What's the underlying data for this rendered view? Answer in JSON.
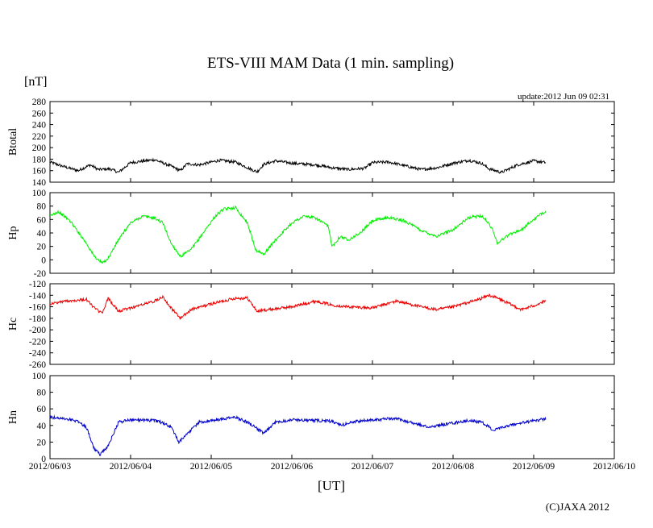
{
  "chart_data": {
    "type": "line",
    "title": "ETS-VIII MAM Data (1 min. sampling)",
    "unit_label": "[nT]",
    "update_text": "update:2012 Jun 09 02:31",
    "xlabel": "[UT]",
    "copyright": "(C)JAXA 2012",
    "x_ticks": [
      "2012/06/03",
      "2012/06/04",
      "2012/06/05",
      "2012/06/06",
      "2012/06/07",
      "2012/06/08",
      "2012/06/09",
      "2012/06/10"
    ],
    "x_range_days": [
      0,
      7
    ],
    "panels": [
      {
        "name": "Btotal",
        "color": "#000000",
        "ylim": [
          140,
          280
        ],
        "yticks": [
          "280",
          "260",
          "240",
          "220",
          "200",
          "180",
          "160",
          "140"
        ],
        "x_days": [
          0,
          0.15,
          0.35,
          0.5,
          0.6,
          0.75,
          0.85,
          1.0,
          1.3,
          1.5,
          1.62,
          1.7,
          1.85,
          2.1,
          2.3,
          2.5,
          2.57,
          2.65,
          2.8,
          3.0,
          3.3,
          3.5,
          3.7,
          3.9,
          4.0,
          4.2,
          4.45,
          4.6,
          4.8,
          5.0,
          5.2,
          5.35,
          5.45,
          5.6,
          5.8,
          6.0,
          6.15
        ],
        "values": [
          175,
          168,
          160,
          170,
          162,
          163,
          157,
          174,
          179,
          168,
          160,
          172,
          170,
          178,
          175,
          162,
          158,
          171,
          177,
          173,
          170,
          165,
          162,
          164,
          174,
          175,
          167,
          162,
          165,
          173,
          178,
          173,
          163,
          157,
          170,
          177,
          174
        ]
      },
      {
        "name": "Hp",
        "color": "#00ee00",
        "ylim": [
          -20,
          100
        ],
        "yticks": [
          "100",
          "80",
          "60",
          "40",
          "20",
          "0",
          "-20"
        ],
        "x_days": [
          0,
          0.1,
          0.25,
          0.45,
          0.55,
          0.65,
          0.72,
          0.85,
          1.0,
          1.15,
          1.3,
          1.4,
          1.5,
          1.62,
          1.75,
          1.9,
          2.05,
          2.15,
          2.3,
          2.45,
          2.55,
          2.65,
          2.8,
          3.0,
          3.15,
          3.3,
          3.45,
          3.5,
          3.6,
          3.7,
          3.85,
          4.0,
          4.2,
          4.4,
          4.6,
          4.8,
          5.0,
          5.2,
          5.35,
          5.4,
          5.48,
          5.55,
          5.7,
          5.85,
          6.0,
          6.15
        ],
        "values": [
          65,
          72,
          58,
          25,
          5,
          -5,
          2,
          30,
          55,
          65,
          62,
          55,
          25,
          5,
          15,
          40,
          65,
          75,
          78,
          55,
          15,
          8,
          30,
          55,
          65,
          62,
          50,
          20,
          35,
          30,
          40,
          58,
          63,
          58,
          44,
          35,
          45,
          63,
          66,
          60,
          48,
          25,
          38,
          45,
          60,
          73
        ]
      },
      {
        "name": "Hc",
        "color": "#ee0000",
        "ylim": [
          -260,
          -120
        ],
        "yticks": [
          "-120",
          "-140",
          "-160",
          "-180",
          "-200",
          "-220",
          "-240",
          "-260"
        ],
        "x_days": [
          0,
          0.2,
          0.45,
          0.55,
          0.65,
          0.72,
          0.85,
          1.0,
          1.3,
          1.4,
          1.5,
          1.62,
          1.75,
          2.0,
          2.3,
          2.45,
          2.57,
          2.7,
          3.0,
          3.3,
          3.5,
          3.7,
          4.0,
          4.3,
          4.6,
          4.8,
          5.0,
          5.3,
          5.45,
          5.55,
          5.7,
          5.85,
          6.0,
          6.15
        ],
        "values": [
          -155,
          -150,
          -147,
          -162,
          -172,
          -145,
          -168,
          -162,
          -150,
          -142,
          -162,
          -180,
          -165,
          -155,
          -145,
          -145,
          -168,
          -165,
          -160,
          -150,
          -157,
          -160,
          -162,
          -150,
          -160,
          -165,
          -160,
          -148,
          -140,
          -145,
          -155,
          -165,
          -158,
          -150
        ]
      },
      {
        "name": "Hn",
        "color": "#0000cc",
        "ylim": [
          0,
          100
        ],
        "yticks": [
          "100",
          "80",
          "60",
          "40",
          "20",
          "0"
        ],
        "x_days": [
          0,
          0.2,
          0.35,
          0.45,
          0.55,
          0.62,
          0.72,
          0.85,
          1.0,
          1.3,
          1.4,
          1.5,
          1.6,
          1.7,
          1.85,
          2.1,
          2.3,
          2.45,
          2.55,
          2.65,
          2.8,
          3.0,
          3.3,
          3.5,
          3.6,
          3.75,
          4.0,
          4.3,
          4.5,
          4.7,
          5.0,
          5.2,
          5.35,
          5.45,
          5.5,
          5.7,
          5.9,
          6.15
        ],
        "values": [
          50,
          48,
          45,
          38,
          12,
          5,
          15,
          44,
          47,
          46,
          43,
          38,
          20,
          30,
          44,
          47,
          50,
          44,
          38,
          30,
          44,
          47,
          46,
          45,
          40,
          44,
          47,
          48,
          43,
          38,
          43,
          46,
          44,
          38,
          34,
          40,
          44,
          48
        ]
      }
    ]
  }
}
